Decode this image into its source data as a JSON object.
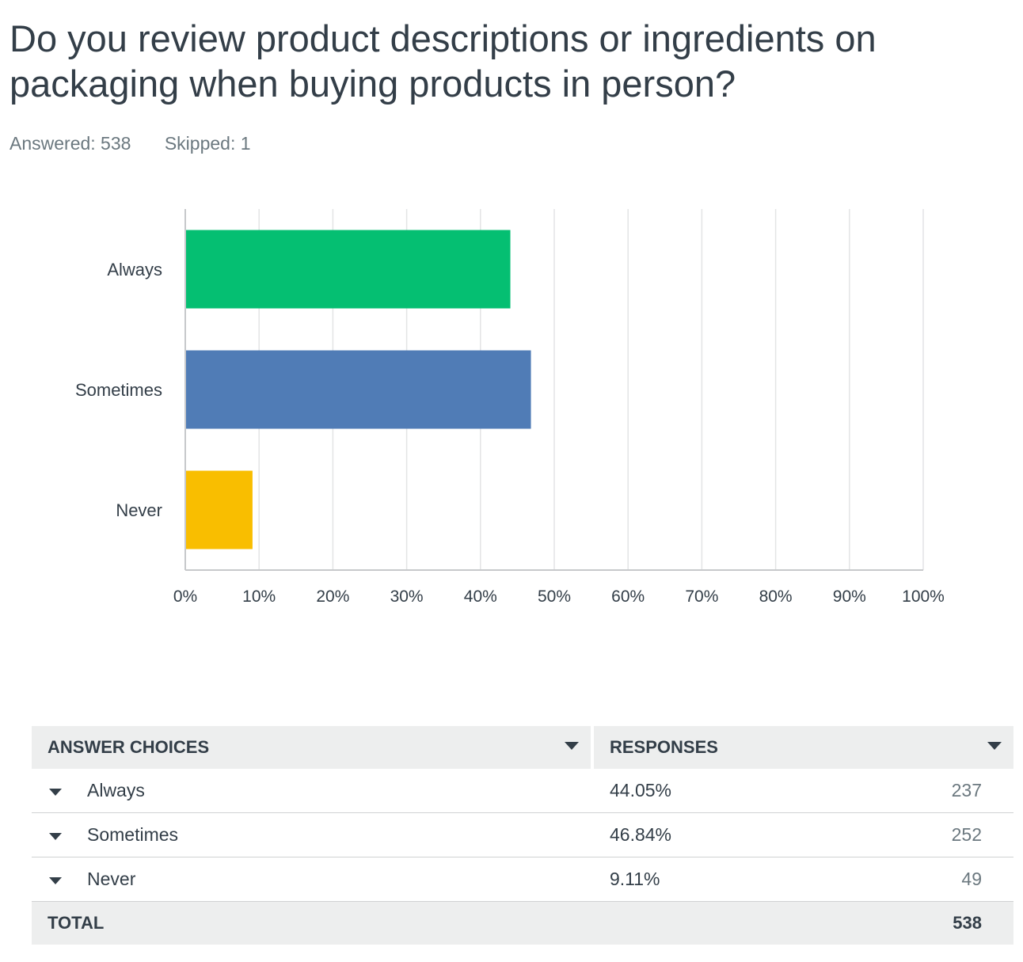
{
  "question": {
    "title": "Do you review product descriptions or ingredients on packaging when buying products in person?",
    "answered": "Answered: 538",
    "skipped": "Skipped: 1"
  },
  "chart_data": {
    "type": "bar",
    "orientation": "horizontal",
    "categories": [
      "Always",
      "Sometimes",
      "Never"
    ],
    "values": [
      44.05,
      46.84,
      9.11
    ],
    "colors": [
      "#05bf72",
      "#507cb6",
      "#f9be00"
    ],
    "xlim": [
      0,
      100
    ],
    "xticks": [
      "0%",
      "10%",
      "20%",
      "30%",
      "40%",
      "50%",
      "60%",
      "70%",
      "80%",
      "90%",
      "100%"
    ],
    "grid": true
  },
  "table": {
    "headers": [
      "ANSWER CHOICES",
      "RESPONSES"
    ],
    "rows": [
      {
        "choice": "Always",
        "percent": "44.05%",
        "count": "237"
      },
      {
        "choice": "Sometimes",
        "percent": "46.84%",
        "count": "252"
      },
      {
        "choice": "Never",
        "percent": "9.11%",
        "count": "49"
      }
    ],
    "total_label": "TOTAL",
    "total_count": "538"
  }
}
